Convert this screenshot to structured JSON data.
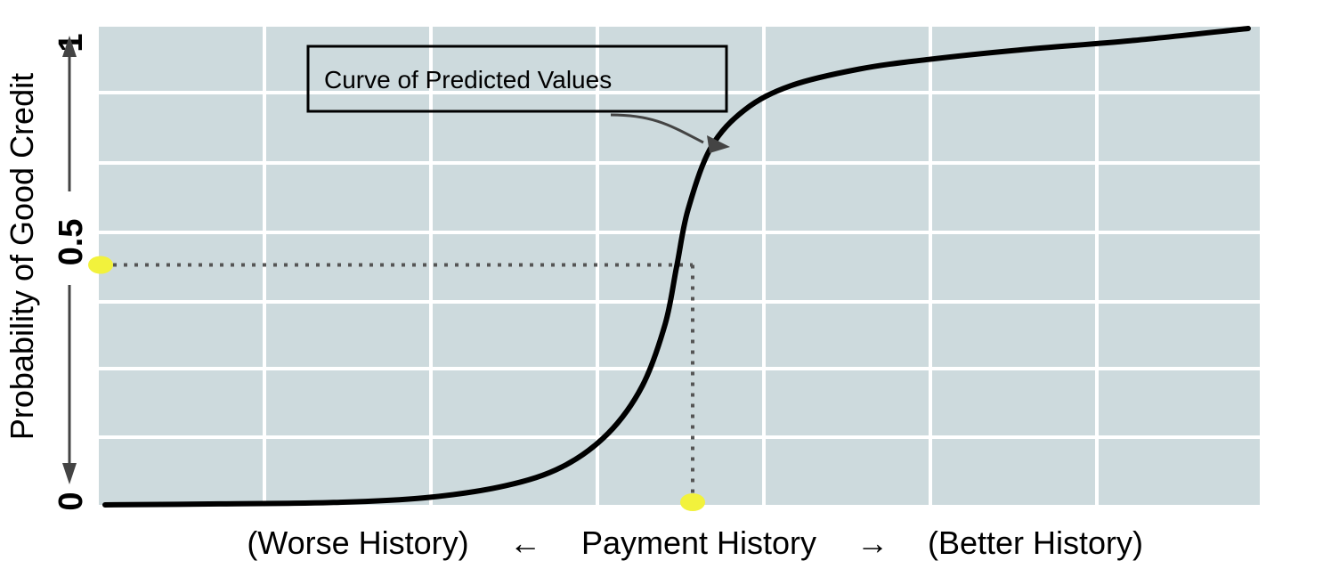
{
  "chart_data": {
    "type": "line",
    "title": "",
    "xlabel": {
      "left": "(Worse History)",
      "left_arrow": "←",
      "center": "Payment History",
      "right_arrow": "→",
      "right": "(Better History)"
    },
    "ylabel": "Probability of Good Credit",
    "ylim": [
      0,
      1
    ],
    "yticks": [
      "0",
      "0.5",
      "1"
    ],
    "grid": true,
    "colors": {
      "plot_background": "#cddadd",
      "grid": "#ffffff",
      "curve": "#000000",
      "guide": "#555555",
      "highlight": "#f2f23c"
    },
    "annotation": "Curve of Predicted Values",
    "series": [
      {
        "name": "",
        "x": [
          0.0,
          0.1,
          0.2,
          0.28,
          0.35,
          0.4,
          0.44,
          0.47,
          0.49,
          0.5,
          0.51,
          0.53,
          0.56,
          0.6,
          0.66,
          0.72,
          0.8,
          0.9,
          1.0
        ],
        "y": [
          0.0,
          0.002,
          0.005,
          0.015,
          0.04,
          0.08,
          0.15,
          0.25,
          0.38,
          0.5,
          0.62,
          0.75,
          0.83,
          0.88,
          0.915,
          0.935,
          0.955,
          0.975,
          1.0
        ]
      }
    ],
    "reference": {
      "x": 0.5,
      "y": 0.5
    }
  }
}
